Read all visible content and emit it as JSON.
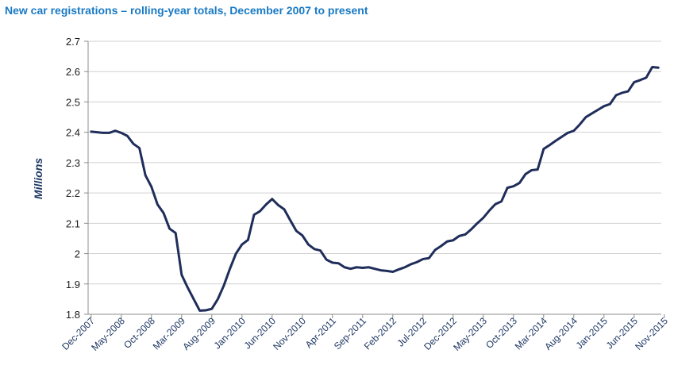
{
  "chart_data": {
    "type": "line",
    "title": "New car registrations – rolling-year totals, December 2007 to present",
    "xlabel": "",
    "ylabel": "Millions",
    "ylim": [
      1.8,
      2.7
    ],
    "y_ticks": [
      "1.8",
      "1.9",
      "2",
      "2.1",
      "2.2",
      "2.3",
      "2.4",
      "2.5",
      "2.6",
      "2.7"
    ],
    "x_tick_labels": [
      "Dec-2007",
      "May-2008",
      "Oct-2008",
      "Mar-2009",
      "Aug-2009",
      "Jan-2010",
      "Jun-2010",
      "Nov-2010",
      "Apr-2011",
      "Sep-2011",
      "Feb-2012",
      "Jul-2012",
      "Dec-2012",
      "May-2013",
      "Oct-2013",
      "Mar-2014",
      "Aug-2014",
      "Jan-2015",
      "Jun-2015",
      "Nov-2015"
    ],
    "grid": true,
    "line_color": "#1f2d5a",
    "series": [
      {
        "values": [
          2.402,
          2.4,
          2.398,
          2.398,
          2.405,
          2.398,
          2.388,
          2.362,
          2.348,
          2.258,
          2.22,
          2.162,
          2.134,
          2.082,
          2.068,
          1.93,
          1.888,
          1.85,
          1.812,
          1.813,
          1.818,
          1.85,
          1.895,
          1.95,
          2.0,
          2.03,
          2.045,
          2.128,
          2.14,
          2.162,
          2.18,
          2.16,
          2.146,
          2.11,
          2.075,
          2.06,
          2.03,
          2.015,
          2.01,
          1.98,
          1.97,
          1.968,
          1.955,
          1.95,
          1.955,
          1.953,
          1.955,
          1.95,
          1.945,
          1.943,
          1.94,
          1.948,
          1.955,
          1.965,
          1.972,
          1.982,
          1.985,
          2.012,
          2.025,
          2.04,
          2.044,
          2.058,
          2.063,
          2.08,
          2.1,
          2.118,
          2.142,
          2.163,
          2.172,
          2.217,
          2.222,
          2.233,
          2.262,
          2.275,
          2.277,
          2.345,
          2.358,
          2.372,
          2.385,
          2.398,
          2.405,
          2.426,
          2.45,
          2.462,
          2.474,
          2.486,
          2.493,
          2.522,
          2.53,
          2.535,
          2.565,
          2.572,
          2.58,
          2.615,
          2.613
        ]
      }
    ]
  }
}
